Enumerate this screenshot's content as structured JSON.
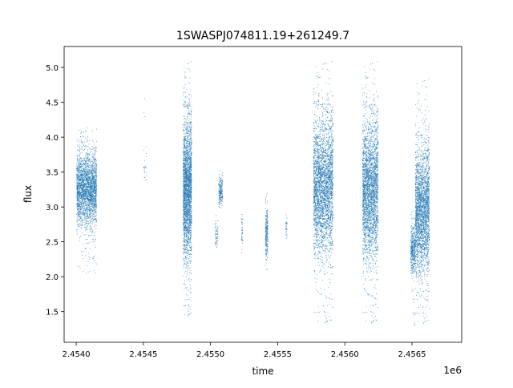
{
  "chart_data": {
    "type": "scatter",
    "title": "1SWASPJ074811.19+261249.7",
    "xlabel": "time",
    "ylabel": "flux",
    "x_offset_label": "1e6",
    "xlim": [
      2453910,
      2456870
    ],
    "ylim": [
      1.06,
      5.3
    ],
    "x_ticks": [
      2454000,
      2454500,
      2455000,
      2455500,
      2456000,
      2456500
    ],
    "x_tick_labels": [
      "2.4540",
      "2.4545",
      "2.4550",
      "2.4555",
      "2.4560",
      "2.4565"
    ],
    "y_ticks": [
      1.5,
      2.0,
      2.5,
      3.0,
      3.5,
      4.0,
      4.5,
      5.0
    ],
    "y_tick_labels": [
      "1.5",
      "2.0",
      "2.5",
      "3.0",
      "3.5",
      "4.0",
      "4.5",
      "5.0"
    ],
    "grid": false,
    "color": "#1f77b4",
    "observing_seasons": [
      {
        "time": [
          2454001,
          2454150
        ],
        "flux_median": 3.25,
        "flux_range": [
          2.05,
          4.15
        ],
        "points": 2500
      },
      {
        "time": [
          2454498,
          2454520
        ],
        "flux_median": 3.6,
        "flux_range": [
          3.2,
          4.97
        ],
        "points": 25
      },
      {
        "time": [
          2454794,
          2454857
        ],
        "flux_median": 3.25,
        "flux_range": [
          1.4,
          5.1
        ],
        "points": 2500
      },
      {
        "time": [
          2455030,
          2455053
        ],
        "flux_median": 2.6,
        "flux_range": [
          2.35,
          3.0
        ],
        "points": 60
      },
      {
        "time": [
          2455059,
          2455088
        ],
        "flux_median": 3.25,
        "flux_range": [
          2.95,
          3.7
        ],
        "points": 200
      },
      {
        "time": [
          2455227,
          2455238
        ],
        "flux_median": 2.65,
        "flux_range": [
          2.2,
          3.05
        ],
        "points": 40
      },
      {
        "time": [
          2455406,
          2455424
        ],
        "flux_median": 2.65,
        "flux_range": [
          2.05,
          3.3
        ],
        "points": 250
      },
      {
        "time": [
          2455557,
          2455568
        ],
        "flux_median": 2.7,
        "flux_range": [
          2.5,
          2.9
        ],
        "points": 30
      },
      {
        "time": [
          2455765,
          2455910
        ],
        "flux_median": 3.3,
        "flux_range": [
          1.3,
          5.1
        ],
        "points": 3500
      },
      {
        "time": [
          2456130,
          2456245
        ],
        "flux_median": 3.25,
        "flux_range": [
          1.3,
          5.1
        ],
        "points": 3000
      },
      {
        "time": [
          2456488,
          2456523
        ],
        "flux_median": 2.4,
        "flux_range": [
          1.28,
          3.0
        ],
        "points": 400
      },
      {
        "time": [
          2456523,
          2456627
        ],
        "flux_median": 2.95,
        "flux_range": [
          1.3,
          4.85
        ],
        "points": 2500
      }
    ]
  }
}
